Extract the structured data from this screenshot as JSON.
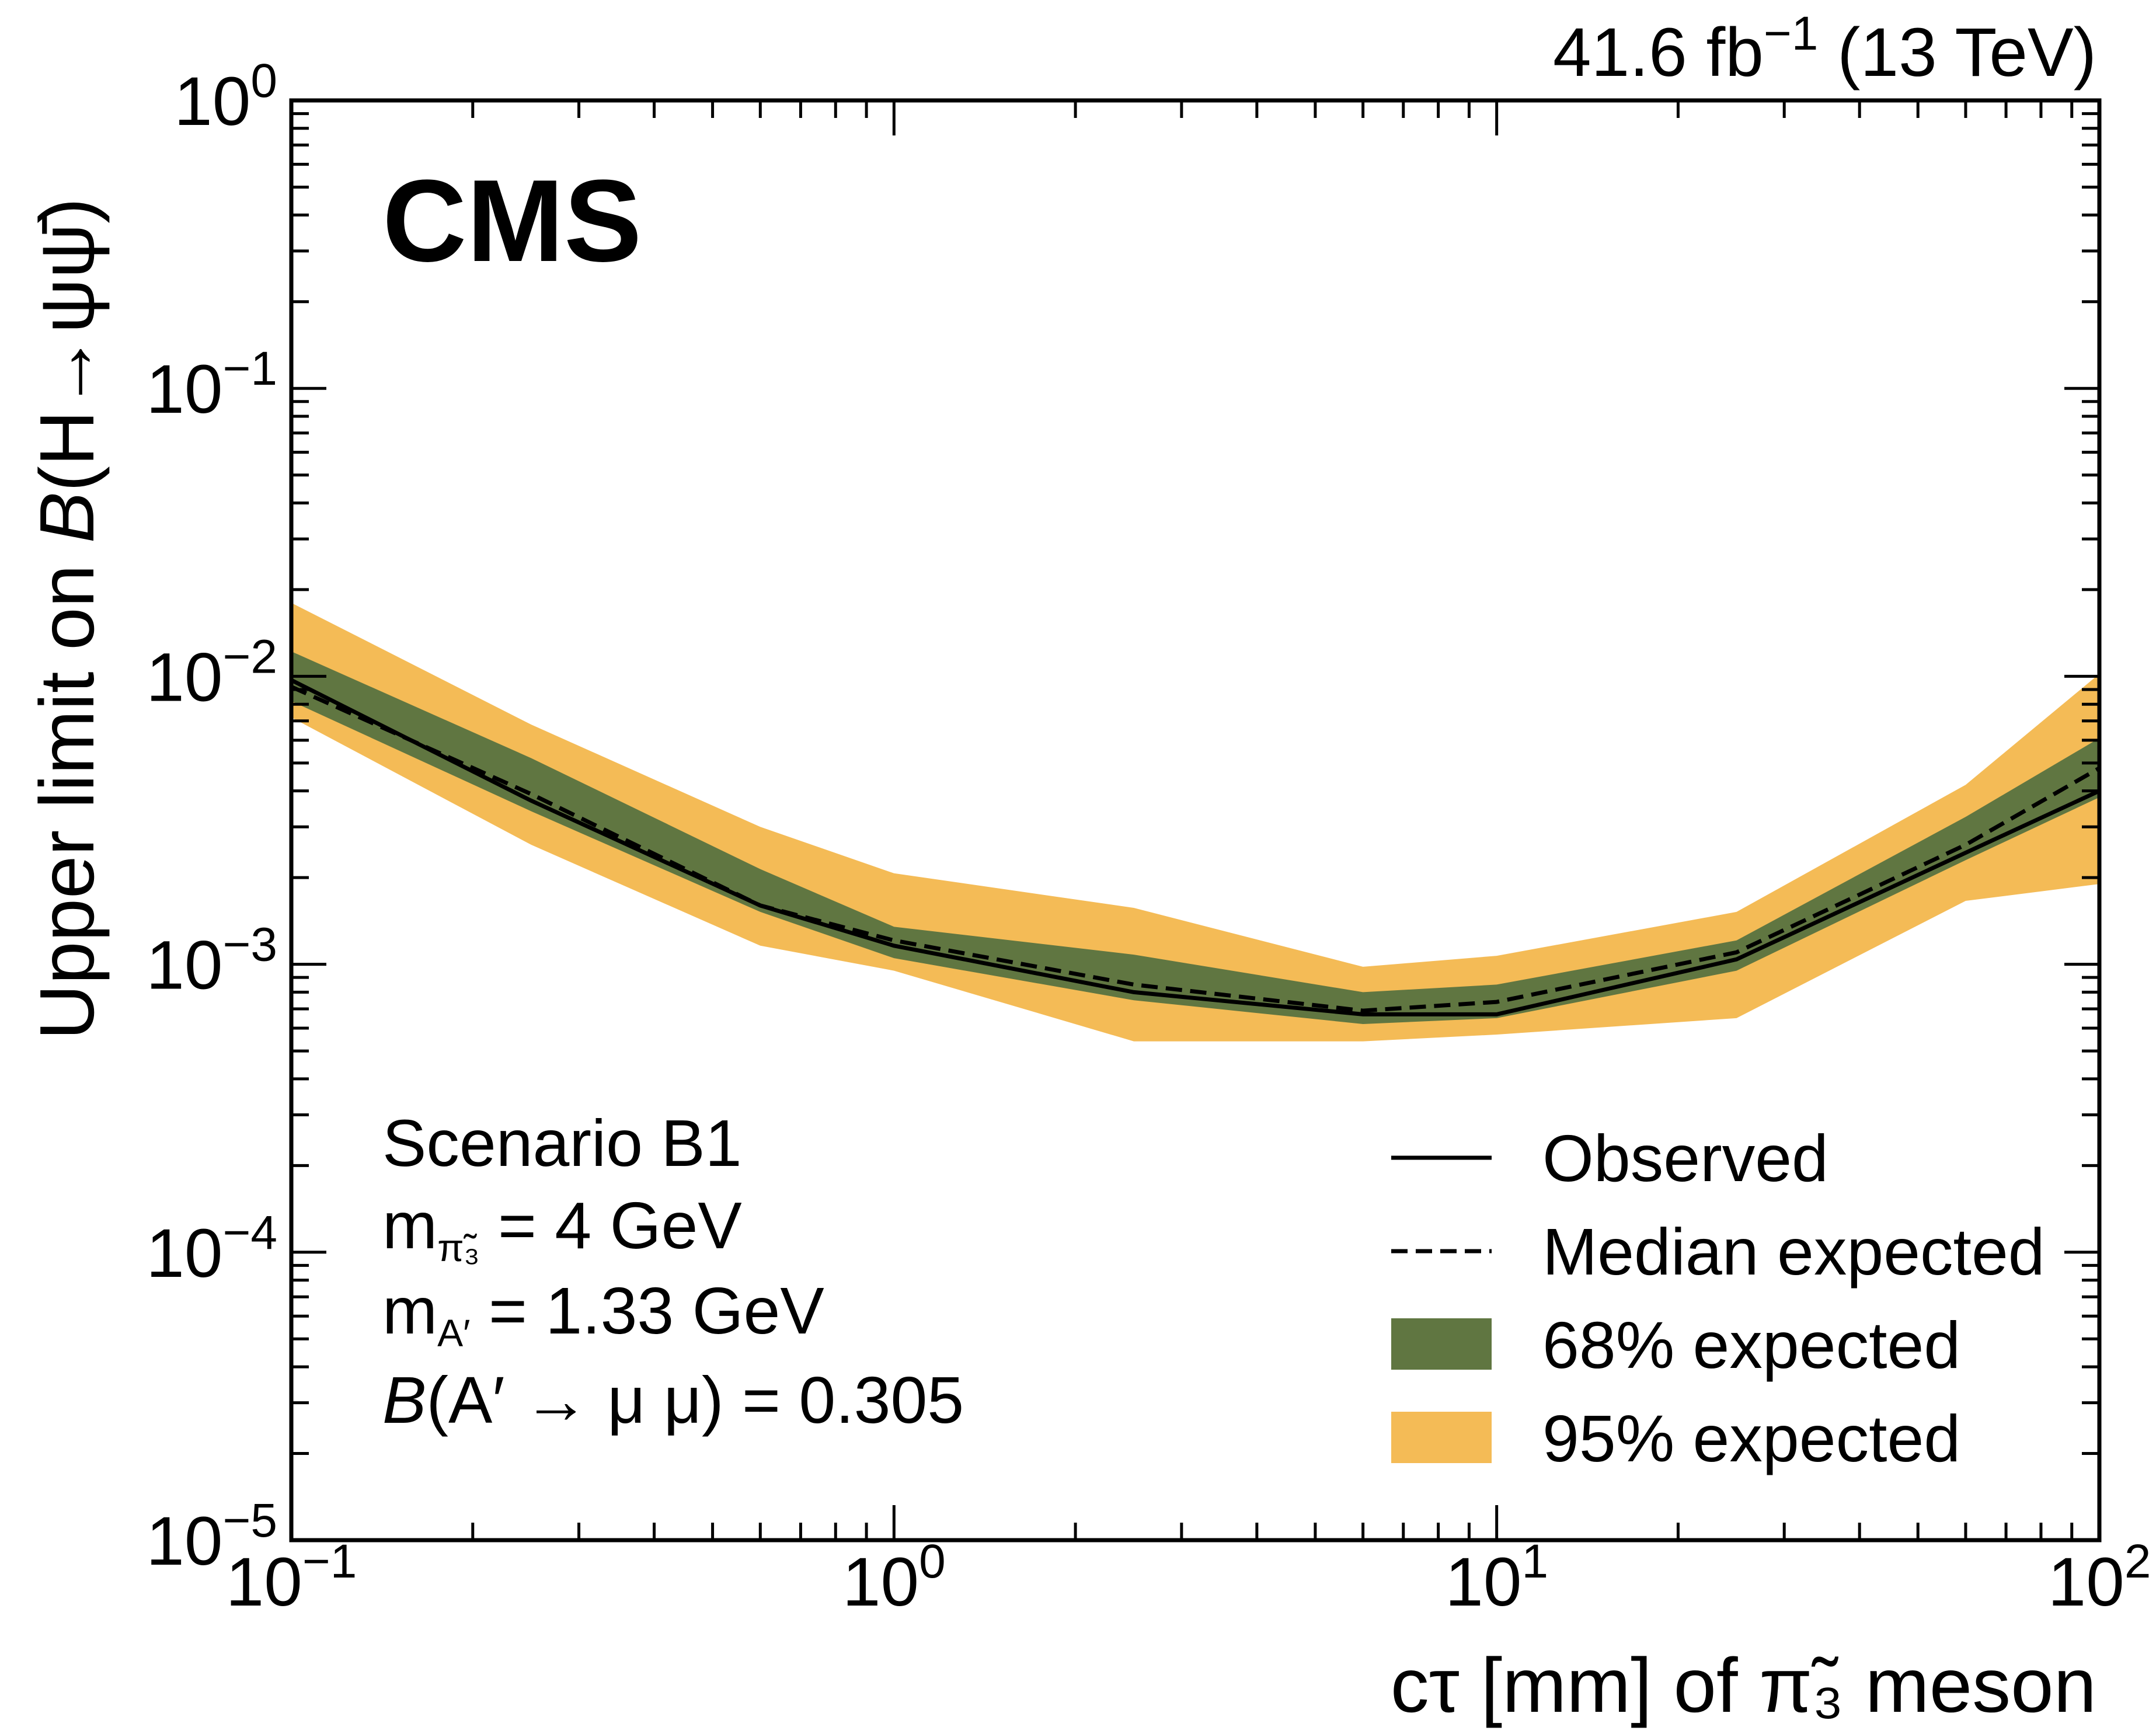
{
  "header": {
    "lumi_value": "41.6 fb",
    "lumi_exponent": "−1",
    "energy": " (13 TeV)"
  },
  "experiment_label": "CMS",
  "annotations": {
    "scenario": "Scenario B1",
    "pi_mass": {
      "m": "m",
      "sub": "π̃₃",
      "rest": " = 4 GeV"
    },
    "aprime_mass": {
      "m": "m",
      "sub": "A′",
      "rest": " = 1.33 GeV"
    },
    "branching": {
      "b": "B",
      "rest": "(A′ → μ μ) = 0.305"
    }
  },
  "colors": {
    "band68": "#607641",
    "band95": "#f4bb56",
    "line": "#000000"
  },
  "chart_data": {
    "type": "line",
    "title": "",
    "xlabel": "cτ [mm] of π̃₃ meson",
    "ylabel_parts": {
      "prefix": "Upper limit on ",
      "italic": "B",
      "suffix": "(H→ψψ̄)"
    },
    "xscale": "log",
    "yscale": "log",
    "xlim": [
      0.1,
      100
    ],
    "ylim": [
      1e-05,
      1
    ],
    "grid": false,
    "legend_position": "bottom-right",
    "x_ticks": [
      {
        "base": "10",
        "exp": "−1",
        "value": 0.1
      },
      {
        "base": "10",
        "exp": "0",
        "value": 1
      },
      {
        "base": "10",
        "exp": "1",
        "value": 10
      },
      {
        "base": "10",
        "exp": "2",
        "value": 100
      }
    ],
    "y_ticks": [
      {
        "base": "10",
        "exp": "0",
        "value": 1
      },
      {
        "base": "10",
        "exp": "−1",
        "value": 0.1
      },
      {
        "base": "10",
        "exp": "−2",
        "value": 0.01
      },
      {
        "base": "10",
        "exp": "−3",
        "value": 0.001
      },
      {
        "base": "10",
        "exp": "−4",
        "value": 0.0001
      },
      {
        "base": "10",
        "exp": "−5",
        "value": 1e-05
      }
    ],
    "x": [
      0.1,
      0.25,
      0.6,
      1.0,
      2.5,
      6,
      10,
      25,
      60,
      100
    ],
    "series": [
      {
        "name": "Observed",
        "style": "solid",
        "values": [
          0.0097,
          0.0037,
          0.0016,
          0.00116,
          0.0008,
          0.00067,
          0.00067,
          0.00104,
          0.00244,
          0.004
        ]
      },
      {
        "name": "Median expected",
        "style": "dashed",
        "values": [
          0.0092,
          0.0039,
          0.0016,
          0.00121,
          0.00085,
          0.00069,
          0.00074,
          0.0011,
          0.0026,
          0.0048
        ]
      }
    ],
    "bands": [
      {
        "name": "95% expected",
        "lower": [
          0.0072,
          0.0026,
          0.00116,
          0.00095,
          0.00054,
          0.00054,
          0.00057,
          0.00065,
          0.00166,
          0.0019
        ],
        "upper": [
          0.018,
          0.0068,
          0.003,
          0.00207,
          0.00157,
          0.00098,
          0.00107,
          0.00152,
          0.0042,
          0.0102
        ]
      },
      {
        "name": "68% expected",
        "lower": [
          0.0082,
          0.0034,
          0.00152,
          0.00105,
          0.00075,
          0.00062,
          0.00065,
          0.00095,
          0.0023,
          0.0038
        ],
        "upper": [
          0.0122,
          0.0052,
          0.00214,
          0.00135,
          0.00108,
          0.0008,
          0.00085,
          0.00121,
          0.00325,
          0.0061
        ]
      }
    ],
    "legend": [
      "Observed",
      "Median expected",
      "68% expected",
      "95% expected"
    ]
  }
}
